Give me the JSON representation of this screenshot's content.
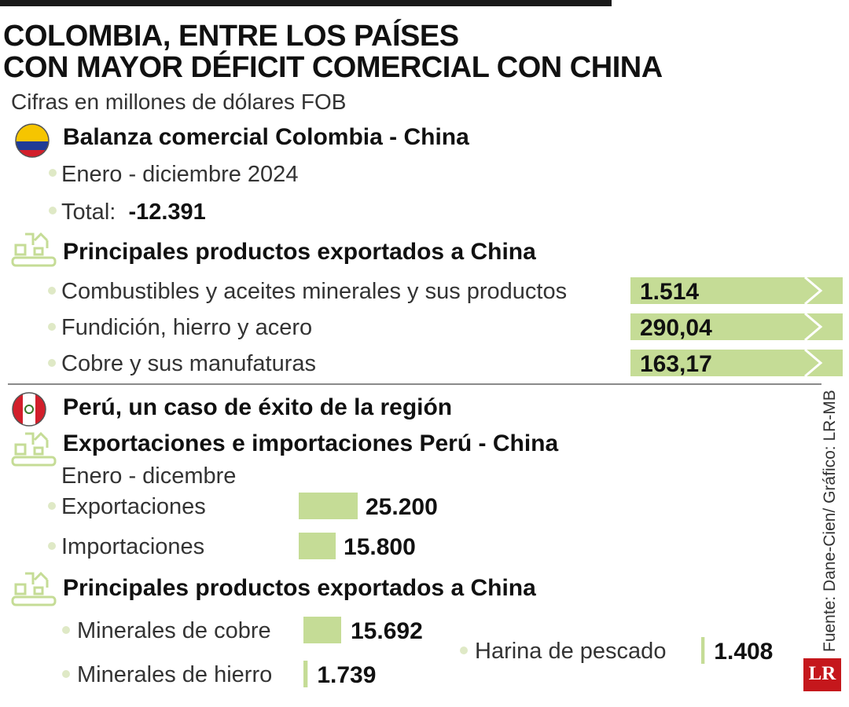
{
  "title": [
    "COLOMBIA, ENTRE LOS PAÍSES",
    "CON MAYOR DÉFICIT COMERCIAL CON CHINA"
  ],
  "subtitle": "Cifras en millones de dólares FOB",
  "colombia": {
    "heading": "Balanza comercial Colombia - China",
    "period": "Enero - diciembre 2024",
    "total_label": "Total:",
    "total_value": "-12.391",
    "products_heading": "Principales productos exportados a China"
  },
  "peru": {
    "heading": "Perú, un caso de éxito de la región",
    "trade_heading": "Exportaciones e importaciones Perú - China",
    "period": "Enero - dicembre",
    "products_heading": "Principales productos exportados a China"
  },
  "source": "Fuente: Dane-Cien/ Gráfico: LR-MB",
  "logo": "LR",
  "icons": {
    "flag_colombia": "colombia-flag-icon",
    "flag_peru": "peru-flag-icon",
    "factory": "factory-icon"
  },
  "colors": {
    "bar": "#c5dc96",
    "bar_arrow": "#ffffff",
    "text": "#333333",
    "logo": "#c5171c"
  },
  "chart_data": [
    {
      "type": "bar",
      "categories": [
        "Combustibles y aceites minerales y sus productos",
        "Fundición, hierro y acero",
        "Cobre y sus manufaturas"
      ],
      "values": [
        1514,
        290.04,
        163.17
      ],
      "labels": [
        "1.514",
        "290,04",
        "163,17"
      ]
    },
    {
      "type": "bar",
      "categories": [
        "Exportaciones",
        "Importaciones"
      ],
      "values": [
        25200,
        15800
      ],
      "labels": [
        "25.200",
        "15.800"
      ]
    },
    {
      "type": "bar",
      "categories": [
        "Minerales de cobre",
        "Minerales de hierro",
        "Harina de pescado"
      ],
      "values": [
        15692,
        1739,
        1408
      ],
      "labels": [
        "15.692",
        "1.739",
        "1.408"
      ]
    }
  ]
}
